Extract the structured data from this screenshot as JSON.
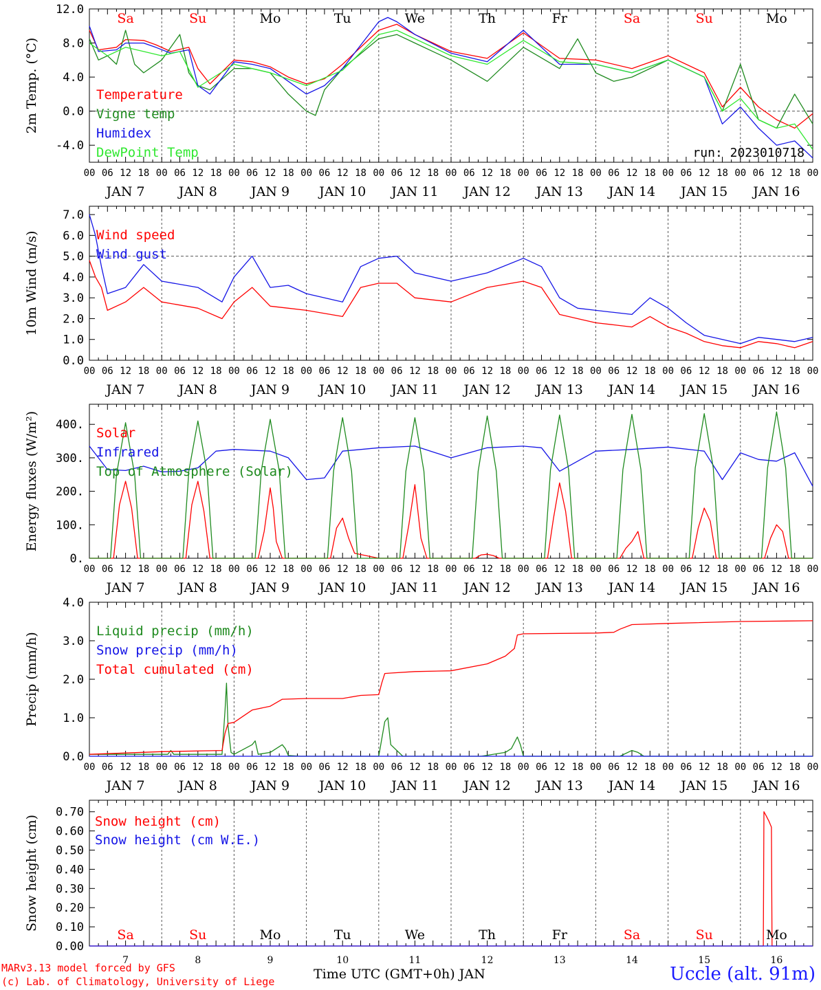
{
  "colors": {
    "red": "#ff0000",
    "green": "#1e8a1e",
    "blue": "#1414e6",
    "lightgreen": "#30e830",
    "weekday": "#000000",
    "weekend": "#ff0000"
  },
  "days": [
    "Sa",
    "Su",
    "Mo",
    "Tu",
    "We",
    "Th",
    "Fr",
    "Sa",
    "Su",
    "Mo"
  ],
  "weekend": [
    true,
    true,
    false,
    false,
    false,
    false,
    false,
    true,
    true,
    false
  ],
  "day_numbers": [
    "7",
    "8",
    "9",
    "10",
    "11",
    "12",
    "13",
    "14",
    "15",
    "16"
  ],
  "date_labels": [
    "JAN  7",
    "JAN  8",
    "JAN  9",
    "JAN 10",
    "JAN 11",
    "JAN 12",
    "JAN 13",
    "JAN 14",
    "JAN 15",
    "JAN 16"
  ],
  "hour_labels": [
    "00",
    "06",
    "12",
    "18"
  ],
  "footer": {
    "credit_line1": "MARv3.13 model forced by GFS",
    "credit_line2": "(c) Lab. of Climatology, University of Liege",
    "x_title": "Time UTC (GMT+0h) JAN",
    "station": "Uccle (alt. 91m)"
  },
  "chart_data": [
    {
      "id": "temperature",
      "type": "line",
      "ylabel": "2m Temp. (°C)",
      "ylim": [
        -6,
        12
      ],
      "yticks": [
        "12.0",
        "8.0",
        "4.0",
        "0.0",
        "-4.0"
      ],
      "ytick_values": [
        12,
        8,
        4,
        0,
        -4
      ],
      "ref_line": 0,
      "annotation": "run: 2023010718",
      "x_unit": "hours since JAN 7 00 UTC",
      "series": [
        {
          "name": "Temperature",
          "color": "#ff0000",
          "x": [
            0,
            3,
            9,
            12,
            18,
            22,
            27,
            33,
            36,
            40,
            48,
            54,
            60,
            66,
            72,
            78,
            84,
            96,
            102,
            108,
            120,
            132,
            144,
            156,
            168,
            180,
            192,
            204,
            210,
            216,
            222,
            228,
            234,
            240
          ],
          "y": [
            9.5,
            7.2,
            7.5,
            8.4,
            8.3,
            7.8,
            7.0,
            7.5,
            5.0,
            3.2,
            6.0,
            5.8,
            5.2,
            4.0,
            3.2,
            3.8,
            5.5,
            9.5,
            10.2,
            9.0,
            7.0,
            6.2,
            9.2,
            6.2,
            6.0,
            5.0,
            6.5,
            4.5,
            0.5,
            2.8,
            0.5,
            -1.0,
            -2.0,
            -0.3
          ]
        },
        {
          "name": "Vigne temp",
          "color": "#1e8a1e",
          "x": [
            0,
            3,
            6,
            9,
            12,
            15,
            18,
            24,
            30,
            33,
            36,
            40,
            48,
            54,
            60,
            66,
            72,
            75,
            78,
            84,
            96,
            102,
            108,
            120,
            132,
            144,
            156,
            162,
            168,
            174,
            180,
            192,
            204,
            210,
            216,
            222,
            228,
            234,
            240
          ],
          "y": [
            8.5,
            6.0,
            6.5,
            5.5,
            9.5,
            5.5,
            4.5,
            6.0,
            9.0,
            4.5,
            3.0,
            2.5,
            5.0,
            5.0,
            4.5,
            2.0,
            0.0,
            -0.5,
            2.5,
            5.0,
            8.5,
            9.0,
            8.0,
            6.0,
            3.5,
            7.5,
            5.0,
            8.5,
            4.5,
            3.5,
            4.0,
            6.0,
            4.0,
            0.0,
            5.5,
            -1.0,
            -2.0,
            2.0,
            -1.5
          ]
        },
        {
          "name": "Humidex",
          "color": "#1414e6",
          "x": [
            0,
            3,
            9,
            12,
            18,
            22,
            27,
            33,
            36,
            40,
            48,
            54,
            60,
            66,
            72,
            78,
            84,
            96,
            99,
            102,
            108,
            120,
            132,
            144,
            156,
            168,
            180,
            192,
            204,
            210,
            216,
            222,
            228,
            234,
            240
          ],
          "y": [
            10.0,
            7.0,
            7.2,
            8.0,
            8.0,
            7.5,
            6.8,
            7.2,
            3.0,
            2.0,
            5.8,
            5.5,
            5.0,
            3.5,
            2.0,
            3.0,
            5.0,
            10.5,
            11.0,
            10.5,
            9.0,
            6.8,
            5.8,
            9.5,
            5.5,
            5.5,
            4.5,
            6.0,
            4.0,
            -1.5,
            0.5,
            -2.0,
            -4.0,
            -3.5,
            -5.5
          ]
        },
        {
          "name": "DewPoint Temp",
          "color": "#30e830",
          "x": [
            0,
            6,
            12,
            18,
            24,
            30,
            36,
            48,
            60,
            72,
            84,
            96,
            102,
            108,
            120,
            132,
            144,
            156,
            168,
            180,
            192,
            204,
            210,
            216,
            222,
            228,
            234,
            240
          ],
          "y": [
            8.0,
            6.5,
            7.5,
            7.0,
            6.5,
            7.0,
            2.8,
            5.5,
            4.5,
            3.0,
            4.8,
            9.0,
            9.5,
            8.5,
            6.5,
            5.5,
            8.3,
            5.8,
            5.5,
            4.5,
            6.0,
            4.0,
            0.0,
            1.5,
            -1.0,
            -2.0,
            -1.5,
            -4.5
          ]
        }
      ]
    },
    {
      "id": "wind",
      "type": "line",
      "ylabel": "10m Wind (m/s)",
      "ylim": [
        0,
        7.4
      ],
      "yticks": [
        "7.0",
        "6.0",
        "5.0",
        "4.0",
        "3.0",
        "2.0",
        "1.0",
        "0.0"
      ],
      "ytick_values": [
        7,
        6,
        5,
        4,
        3,
        2,
        1,
        0
      ],
      "ref_line": 5,
      "series": [
        {
          "name": "Wind speed",
          "color": "#ff0000",
          "x": [
            0,
            2,
            4,
            6,
            12,
            18,
            24,
            36,
            44,
            48,
            54,
            60,
            66,
            72,
            84,
            90,
            96,
            102,
            108,
            120,
            132,
            144,
            150,
            156,
            162,
            168,
            174,
            180,
            186,
            192,
            198,
            204,
            210,
            216,
            222,
            228,
            234,
            240
          ],
          "y": [
            4.8,
            4.0,
            3.5,
            2.4,
            2.8,
            3.5,
            2.8,
            2.5,
            2.0,
            2.8,
            3.5,
            2.6,
            2.5,
            2.4,
            2.1,
            3.5,
            3.7,
            3.7,
            3.0,
            2.8,
            3.5,
            3.8,
            3.5,
            2.2,
            2.0,
            1.8,
            1.7,
            1.6,
            2.1,
            1.6,
            1.3,
            0.9,
            0.7,
            0.6,
            0.9,
            0.8,
            0.6,
            0.9
          ]
        },
        {
          "name": "Wind gust",
          "color": "#1414e6",
          "x": [
            0,
            2,
            4,
            6,
            12,
            18,
            24,
            36,
            44,
            48,
            54,
            60,
            66,
            72,
            84,
            90,
            96,
            102,
            108,
            120,
            132,
            144,
            150,
            156,
            162,
            168,
            174,
            180,
            186,
            192,
            198,
            204,
            210,
            216,
            222,
            228,
            234,
            240
          ],
          "y": [
            7.0,
            6.0,
            4.5,
            3.2,
            3.5,
            4.6,
            3.8,
            3.5,
            2.8,
            4.0,
            5.0,
            3.5,
            3.6,
            3.2,
            2.8,
            4.5,
            4.9,
            5.0,
            4.2,
            3.8,
            4.2,
            4.9,
            4.5,
            3.0,
            2.5,
            2.4,
            2.3,
            2.2,
            3.0,
            2.5,
            1.8,
            1.2,
            1.0,
            0.8,
            1.1,
            1.0,
            0.9,
            1.1
          ]
        }
      ]
    },
    {
      "id": "energy",
      "type": "line",
      "ylabel": "Energy fluxes (W/m²)",
      "ylim": [
        0,
        460
      ],
      "yticks": [
        "400.",
        "300.",
        "200.",
        "100.",
        "0."
      ],
      "ytick_values": [
        400,
        300,
        200,
        100,
        0
      ],
      "series": [
        {
          "name": "Solar",
          "color": "#ff0000",
          "x": [
            0,
            8,
            10,
            12,
            14,
            16,
            24,
            32,
            34,
            36,
            38,
            40,
            48,
            56,
            58,
            60,
            61,
            62,
            64,
            72,
            80,
            82,
            84,
            86,
            88,
            96,
            104,
            106,
            108,
            110,
            112,
            120,
            128,
            130,
            132,
            134,
            136,
            144,
            152,
            154,
            156,
            158,
            160,
            168,
            176,
            178,
            180,
            182,
            184,
            192,
            200,
            202,
            204,
            206,
            208,
            216,
            224,
            226,
            228,
            230,
            232,
            240
          ],
          "y": [
            0,
            0,
            160,
            230,
            150,
            0,
            0,
            0,
            160,
            230,
            140,
            0,
            0,
            0,
            80,
            210,
            150,
            50,
            0,
            0,
            0,
            90,
            120,
            60,
            15,
            0,
            0,
            100,
            220,
            60,
            0,
            0,
            0,
            10,
            12,
            8,
            0,
            0,
            0,
            120,
            225,
            140,
            0,
            0,
            0,
            30,
            50,
            80,
            0,
            0,
            0,
            90,
            150,
            110,
            0,
            0,
            0,
            60,
            100,
            80,
            0,
            0
          ]
        },
        {
          "name": "Infrared",
          "color": "#1414e6",
          "x": [
            0,
            6,
            12,
            18,
            24,
            30,
            36,
            42,
            48,
            60,
            66,
            72,
            78,
            84,
            96,
            108,
            120,
            132,
            144,
            150,
            156,
            162,
            168,
            180,
            192,
            204,
            210,
            216,
            222,
            228,
            234,
            240
          ],
          "y": [
            335,
            265,
            262,
            275,
            258,
            260,
            270,
            320,
            325,
            320,
            300,
            235,
            240,
            320,
            330,
            335,
            300,
            330,
            335,
            330,
            260,
            290,
            320,
            325,
            332,
            320,
            235,
            315,
            295,
            290,
            315,
            215
          ]
        },
        {
          "name": "Top of Atmosphere (Solar)",
          "color": "#1e8a1e",
          "x": [
            0,
            7,
            9,
            12,
            15,
            17,
            24,
            31,
            33,
            36,
            39,
            41,
            48,
            55,
            57,
            60,
            63,
            65,
            72,
            79,
            81,
            84,
            87,
            89,
            96,
            103,
            105,
            108,
            111,
            113,
            120,
            127,
            129,
            132,
            135,
            137,
            144,
            151,
            153,
            156,
            159,
            161,
            168,
            175,
            177,
            180,
            183,
            185,
            192,
            199,
            201,
            204,
            207,
            209,
            216,
            223,
            225,
            228,
            231,
            233,
            240
          ],
          "y": [
            0,
            0,
            250,
            405,
            250,
            0,
            0,
            0,
            260,
            410,
            260,
            0,
            0,
            0,
            260,
            415,
            260,
            0,
            0,
            0,
            260,
            420,
            260,
            0,
            0,
            0,
            260,
            420,
            260,
            0,
            0,
            0,
            260,
            425,
            260,
            0,
            0,
            0,
            265,
            428,
            265,
            0,
            0,
            0,
            265,
            430,
            265,
            0,
            0,
            0,
            270,
            432,
            270,
            0,
            0,
            0,
            270,
            437,
            270,
            0,
            0
          ]
        }
      ]
    },
    {
      "id": "precip",
      "type": "line",
      "ylabel": "Precip (mm/h)",
      "ylim": [
        0,
        4.0
      ],
      "yticks": [
        "4.0",
        "3.0",
        "2.0",
        "1.0",
        "0.0"
      ],
      "ytick_values": [
        4,
        3,
        2,
        1,
        0
      ],
      "series": [
        {
          "name": "Liquid precip (mm/h)",
          "color": "#1e8a1e",
          "x": [
            0,
            26,
            27,
            28,
            44,
            45,
            45.5,
            46,
            47,
            48,
            54,
            55,
            56,
            60,
            64,
            65,
            66,
            70,
            96,
            98,
            99,
            100,
            104,
            130,
            138,
            140,
            142,
            143,
            144,
            176,
            180,
            182,
            184,
            240
          ],
          "y": [
            0.05,
            0.05,
            0.15,
            0.05,
            0.05,
            1.2,
            1.9,
            0.8,
            0.1,
            0.05,
            0.3,
            0.4,
            0.05,
            0.1,
            0.3,
            0.2,
            0.02,
            0.0,
            0.0,
            0.9,
            1.0,
            0.3,
            0.0,
            0.0,
            0.1,
            0.2,
            0.5,
            0.3,
            0.0,
            0.0,
            0.15,
            0.1,
            0.0,
            0.0
          ]
        },
        {
          "name": "Snow precip (mm/h)",
          "color": "#1414e6",
          "x": [
            0,
            240
          ],
          "y": [
            0,
            0
          ]
        },
        {
          "name": "Total cumulated (cm)",
          "color": "#ff0000",
          "x": [
            0,
            24,
            44,
            45,
            46,
            48,
            54,
            60,
            64,
            72,
            84,
            90,
            96,
            97,
            98,
            100,
            108,
            120,
            132,
            138,
            141,
            142,
            144,
            168,
            174,
            176,
            180,
            192,
            216,
            240
          ],
          "y": [
            0.05,
            0.12,
            0.15,
            0.6,
            0.85,
            0.88,
            1.2,
            1.3,
            1.48,
            1.5,
            1.5,
            1.58,
            1.6,
            1.9,
            2.15,
            2.16,
            2.2,
            2.22,
            2.4,
            2.6,
            2.8,
            3.15,
            3.18,
            3.2,
            3.22,
            3.3,
            3.42,
            3.45,
            3.5,
            3.52
          ]
        }
      ]
    },
    {
      "id": "snow",
      "type": "line",
      "ylabel": "Snow height (cm)",
      "ylim": [
        0,
        0.76
      ],
      "yticks": [
        "0.70",
        "0.60",
        "0.50",
        "0.40",
        "0.30",
        "0.20",
        "0.10",
        "0.00"
      ],
      "ytick_values": [
        0.7,
        0.6,
        0.5,
        0.4,
        0.3,
        0.2,
        0.1,
        0.0
      ],
      "series": [
        {
          "name": "Snow height (cm)",
          "color": "#ff0000",
          "x": [
            0,
            223.6,
            223.8,
            224.5,
            225.5,
            226.3,
            226.5,
            240
          ],
          "y": [
            0,
            0,
            0.7,
            0.68,
            0.65,
            0.62,
            0,
            0
          ]
        },
        {
          "name": "Snow height (cm W.E.)",
          "color": "#1414e6",
          "x": [
            0,
            240
          ],
          "y": [
            0,
            0
          ]
        }
      ]
    }
  ]
}
